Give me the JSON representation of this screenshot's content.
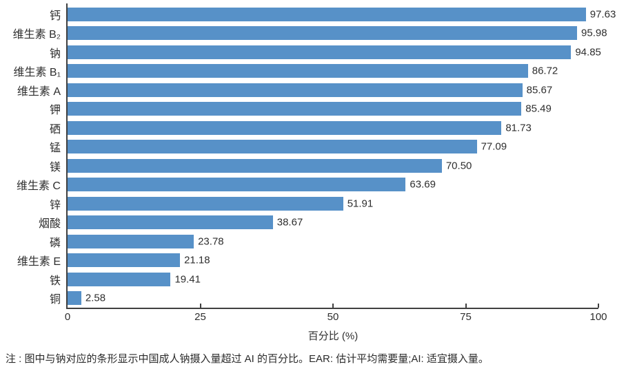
{
  "chart_data": {
    "type": "bar",
    "orientation": "horizontal",
    "title": "",
    "xlabel": "百分比 (%)",
    "ylabel": "",
    "xlim": [
      0,
      100
    ],
    "xticks": [
      0,
      25,
      50,
      75,
      100
    ],
    "grid": false,
    "legend": "none",
    "bar_color": "#5791C8",
    "axis_color": "#3F3F3F",
    "categories": [
      "钙",
      "维生素 B₂",
      "钠",
      "维生素 B₁",
      "维生素 A",
      "钾",
      "硒",
      "锰",
      "镁",
      "维生素 C",
      "锌",
      "烟酸",
      "磷",
      "维生素 E",
      "铁",
      "铜"
    ],
    "values": [
      97.63,
      95.98,
      94.85,
      86.72,
      85.67,
      85.49,
      81.73,
      77.09,
      70.5,
      63.69,
      51.91,
      38.67,
      23.78,
      21.18,
      19.41,
      2.58
    ],
    "value_labels": [
      "97.63",
      "95.98",
      "94.85",
      "86.72",
      "85.67",
      "85.49",
      "81.73",
      "77.09",
      "70.50",
      "63.69",
      "51.91",
      "38.67",
      "23.78",
      "21.18",
      "19.41",
      "2.58"
    ]
  },
  "footnote": "注 : 图中与钠对应的条形显示中国成人钠摄入量超过 AI 的百分比。EAR: 估计平均需要量;AI: 适宜摄入量。"
}
